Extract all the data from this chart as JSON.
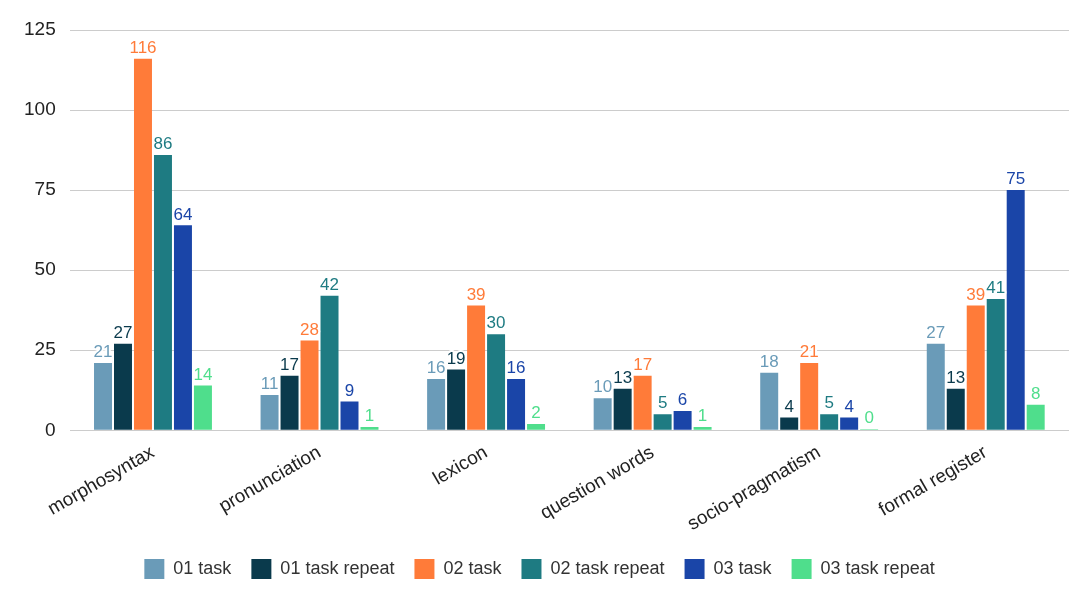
{
  "chart_data": {
    "type": "bar",
    "categories": [
      "morphosyntax",
      "pronunciation",
      "lexicon",
      "question words",
      "socio-pragmatism",
      "formal register"
    ],
    "series": [
      {
        "name": "01 task",
        "color": "#6a9bb8",
        "values": [
          21,
          11,
          16,
          10,
          18,
          27
        ]
      },
      {
        "name": "01 task repeat",
        "color": "#0a3a4c",
        "values": [
          27,
          17,
          19,
          13,
          4,
          13
        ]
      },
      {
        "name": "02 task",
        "color": "#ff7b39",
        "values": [
          116,
          28,
          39,
          17,
          21,
          39
        ]
      },
      {
        "name": "02 task repeat",
        "color": "#1e7b82",
        "values": [
          86,
          42,
          30,
          5,
          5,
          41
        ]
      },
      {
        "name": "03 task",
        "color": "#1a45a8",
        "values": [
          64,
          9,
          16,
          6,
          4,
          75
        ]
      },
      {
        "name": "03 task repeat",
        "color": "#4fde8c",
        "values": [
          14,
          1,
          2,
          1,
          0,
          8
        ]
      }
    ],
    "ylim": [
      0,
      125
    ],
    "yticks": [
      0,
      25,
      50,
      75,
      100,
      125
    ],
    "grid": "y",
    "legend": "bottom",
    "data_labels": true
  }
}
